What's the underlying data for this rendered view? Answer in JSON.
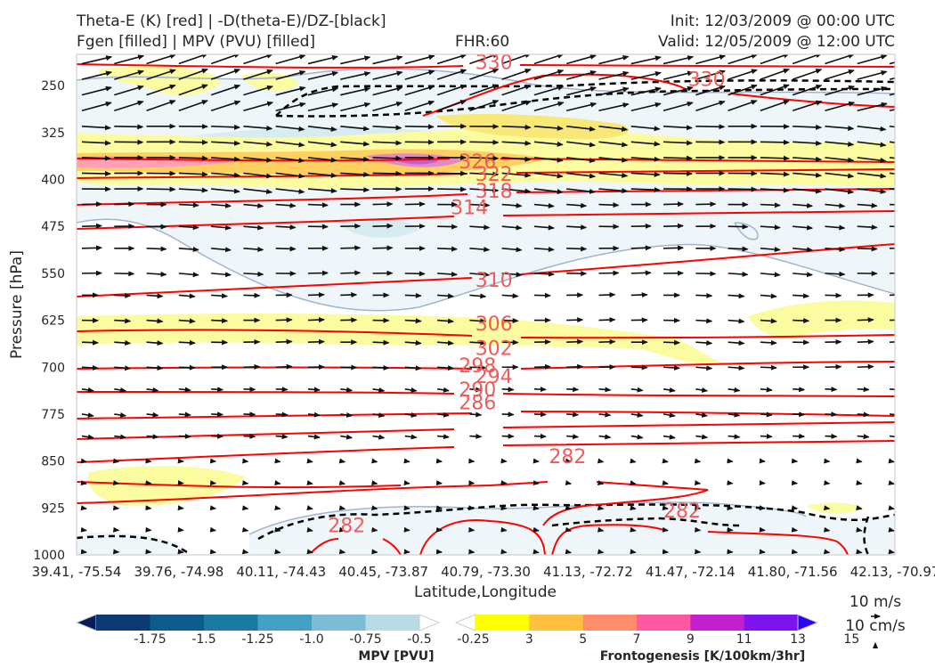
{
  "titles": {
    "left_line1": "Theta-E (K) [red] | -D(theta-E)/DZ-[black]",
    "left_line2": "Fgen [filled] | MPV (PVU) [filled]",
    "center": "FHR:60",
    "right_line1": "Init: 12/03/2009 @ 00:00 UTC",
    "right_line2": "Valid: 12/05/2009 @ 12:00 UTC"
  },
  "chart_data": {
    "type": "cross-section",
    "xlabel": "Latitude,Longitude",
    "ylabel": "Pressure [hPa]",
    "x_ticks": [
      "39.41, -75.54",
      "39.76, -74.98",
      "40.11, -74.43",
      "40.45, -73.87",
      "40.79, -73.30",
      "41.13, -72.72",
      "41.47, -72.14",
      "41.80, -71.56",
      "42.13, -70.97"
    ],
    "y_ticks": [
      250,
      325,
      400,
      475,
      550,
      625,
      700,
      775,
      850,
      925,
      1000
    ],
    "ylim": [
      1000,
      200
    ],
    "y_inverted": true,
    "theta_e_contours": {
      "color": "#ff0000",
      "labels": [
        {
          "value": "330",
          "x": 0.51,
          "p": 212
        },
        {
          "value": "330",
          "x": 0.77,
          "p": 239
        },
        {
          "value": "326",
          "x": 0.49,
          "p": 371
        },
        {
          "value": "322",
          "x": 0.51,
          "p": 391
        },
        {
          "value": "318",
          "x": 0.51,
          "p": 418
        },
        {
          "value": "314",
          "x": 0.48,
          "p": 444
        },
        {
          "value": "310",
          "x": 0.51,
          "p": 560
        },
        {
          "value": "306",
          "x": 0.51,
          "p": 630
        },
        {
          "value": "302",
          "x": 0.51,
          "p": 669
        },
        {
          "value": "298",
          "x": 0.49,
          "p": 697
        },
        {
          "value": "294",
          "x": 0.51,
          "p": 714
        },
        {
          "value": "290",
          "x": 0.49,
          "p": 735
        },
        {
          "value": "286",
          "x": 0.49,
          "p": 756
        },
        {
          "value": "282",
          "x": 0.6,
          "p": 842
        },
        {
          "value": "282",
          "x": 0.33,
          "p": 952
        },
        {
          "value": "282",
          "x": 0.74,
          "p": 929
        }
      ]
    },
    "mpv_colorbar": {
      "label": "MPV [PVU]",
      "ticks": [
        "-1.75",
        "-1.5",
        "-1.25",
        "-1.0",
        "-0.75",
        "-0.5",
        "-0.25"
      ],
      "colors": [
        "#081d58",
        "#0b3a75",
        "#0d5a8c",
        "#1b7aa3",
        "#41a0c4",
        "#7cbcd6",
        "#b9dbe6",
        "#ffffff"
      ]
    },
    "fgen_colorbar": {
      "label": "Frontogenesis [K/100km/3hr]",
      "ticks": [
        "3",
        "5",
        "7",
        "9",
        "11",
        "13",
        "15"
      ],
      "colors": [
        "#ffffff",
        "#ffff00",
        "#ffc040",
        "#ff8c6a",
        "#ff58a0",
        "#c020d0",
        "#7d14f0",
        "#2a00ff"
      ]
    },
    "wind_reference": {
      "speed_label": "10 m/s",
      "vertical_label": "10 cm/s"
    }
  }
}
